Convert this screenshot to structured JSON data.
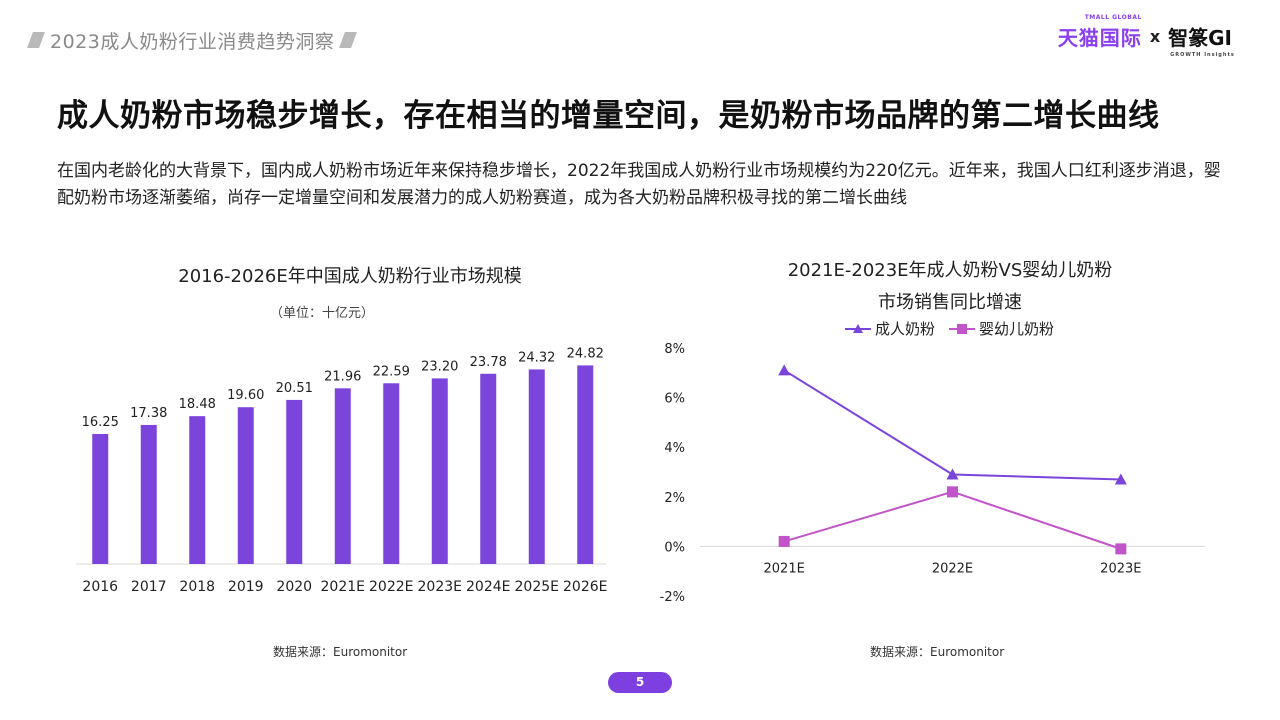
{
  "header": {
    "report_title": "2023成人奶粉行业消费趋势洞察"
  },
  "brand": {
    "tmall": "天猫国际",
    "tmall_small": "TMALL GLOBAL",
    "x": "x",
    "gi": "智篆GI",
    "gi_small": "GROWTH  Insights"
  },
  "headline": "成人奶粉市场稳步增长，存在相当的增量空间，是奶粉市场品牌的第二增长曲线",
  "intro": "在国内老龄化的大背景下，国内成人奶粉市场近年来保持稳步增长，2022年我国成人奶粉行业市场规模约为220亿元。近年来，我国人口红利逐步消退，婴配奶粉市场逐渐萎缩，尚存一定增量空间和发展潜力的成人奶粉赛道，成为各大奶粉品牌积极寻找的第二增长曲线",
  "colors": {
    "bar": "#7b45dc",
    "line_adult": "#7b45dc",
    "line_infant": "#c154c8",
    "page_pill": "#7d3fe0"
  },
  "chart_data": [
    {
      "type": "bar",
      "title": "2016-2026E年中国成人奶粉行业市场规模",
      "unit": "（单位：十亿元）",
      "categories": [
        "2016",
        "2017",
        "2018",
        "2019",
        "2020",
        "2021E",
        "2022E",
        "2023E",
        "2024E",
        "2025E",
        "2026E"
      ],
      "values": [
        16.25,
        17.38,
        18.48,
        19.6,
        20.51,
        21.96,
        22.59,
        23.2,
        23.78,
        24.32,
        24.82
      ],
      "value_labels": [
        "16.25",
        "17.38",
        "18.48",
        "19.60",
        "20.51",
        "21.96",
        "22.59",
        "23.20",
        "23.78",
        "24.32",
        "24.82"
      ],
      "ylim": [
        0,
        28
      ],
      "grid": false,
      "source": "数据来源：Euromonitor"
    },
    {
      "type": "line",
      "title_line1": "2021E-2023E年成人奶粉VS婴幼儿奶粉",
      "title_line2": "市场销售同比增速",
      "categories": [
        "2021E",
        "2022E",
        "2023E"
      ],
      "series": [
        {
          "name": "成人奶粉",
          "values": [
            7.1,
            2.9,
            2.7
          ],
          "marker": "triangle"
        },
        {
          "name": "婴幼儿奶粉",
          "values": [
            0.2,
            2.2,
            -0.1
          ],
          "marker": "square"
        }
      ],
      "ylim": [
        -2,
        8
      ],
      "yticks": [
        "8%",
        "6%",
        "4%",
        "2%",
        "0%",
        "-2%"
      ],
      "ytick_values": [
        8,
        6,
        4,
        2,
        0,
        -2
      ],
      "legend_position": "top",
      "grid": false,
      "source": "数据来源：Euromonitor"
    }
  ],
  "page": {
    "number": "5"
  }
}
